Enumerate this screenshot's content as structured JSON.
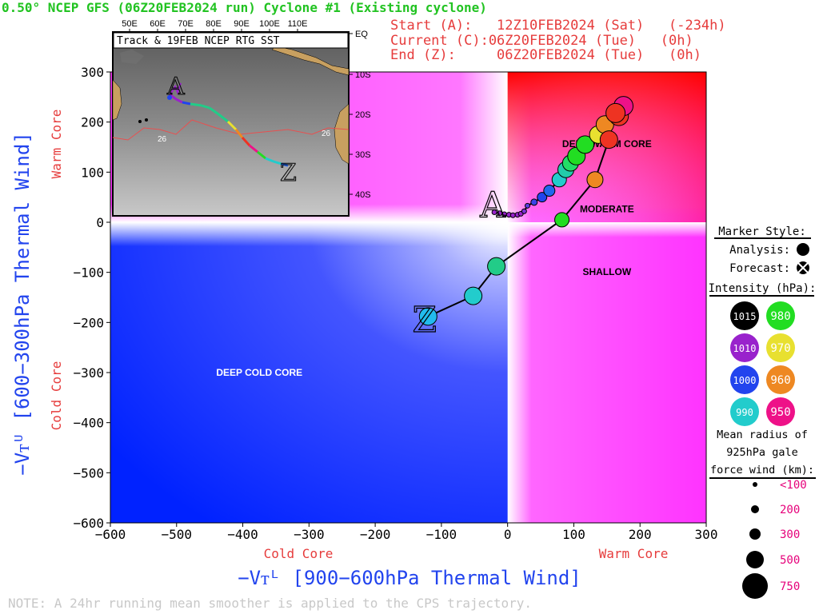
{
  "header": {
    "title": "0.50° NCEP GFS (06Z20FEB2024 run) Cyclone #1 (Existing cyclone)",
    "start_line": "Start (A):   12Z10FEB2024 (Sat)   (-234h)",
    "current_line": "Current (C):06Z20FEB2024 (Tue)   (0h)",
    "end_line": "End (Z):     06Z20FEB2024 (Tue)   (0h)"
  },
  "inset": {
    "title": "Track & 19FEB NCEP RTG SST",
    "lon_labels": [
      "50E",
      "60E",
      "70E",
      "80E",
      "90E",
      "100E",
      "110E"
    ],
    "lat_labels": [
      "EQ",
      "10S",
      "20S",
      "30S",
      "40S"
    ],
    "isotherm_label": "26",
    "start_marker": "A",
    "end_marker": "Z"
  },
  "regions": {
    "deep_warm": "DEEP WARM CORE",
    "moderate": "MODERATE",
    "shallow": "SHALLOW",
    "deep_cold": "DEEP COLD CORE"
  },
  "axes": {
    "ylabel": "−Vᴛᵁ [600−300hPa Thermal Wind]",
    "xlabel": "−Vᴛᴸ [900−600hPa Thermal Wind]",
    "y_warm": "Warm Core",
    "y_cold": "Cold Core",
    "x_cold": "Cold Core",
    "x_warm": "Warm Core"
  },
  "legend": {
    "marker_style_title": "Marker Style:",
    "analysis_label": "Analysis:",
    "forecast_label": "Forecast:",
    "intensity_title": "Intensity (hPa):",
    "intensity_items": [
      {
        "value": "1015",
        "color": "#000000"
      },
      {
        "value": "980",
        "color": "#22dd22"
      },
      {
        "value": "1010",
        "color": "#9922cc"
      },
      {
        "value": "970",
        "color": "#e8e030"
      },
      {
        "value": "1000",
        "color": "#2244ee"
      },
      {
        "value": "960",
        "color": "#ee8822"
      },
      {
        "value": "990",
        "color": "#22cccc"
      },
      {
        "value": "950",
        "color": "#ee1188"
      }
    ],
    "radius_title_1": "Mean radius of",
    "radius_title_2": "925hPa gale",
    "radius_title_3": "force wind (km):",
    "radius_items": [
      "<100",
      "200",
      "300",
      "500",
      "750"
    ]
  },
  "note": "NOTE:  A 24hr running mean smoother is applied to the CPS trajectory.",
  "chart_data": {
    "type": "scatter",
    "title": "0.50° NCEP GFS (06Z20FEB2024 run) Cyclone #1 (Existing cyclone)",
    "xlabel": "−Vᴛᴸ [900−600hPa Thermal Wind]",
    "ylabel": "−Vᴛᵁ [600−300hPa Thermal Wind]",
    "xlim": [
      -600,
      300
    ],
    "ylim": [
      -600,
      300
    ],
    "xticks": [
      -600,
      -500,
      -400,
      -300,
      -200,
      -100,
      0,
      100,
      200,
      300
    ],
    "yticks": [
      300,
      200,
      100,
      0,
      -100,
      -200,
      -300,
      -400,
      -500,
      -600
    ],
    "grid": false,
    "trajectory": [
      {
        "x": -20,
        "y": 20,
        "r": 3,
        "color": "#9922cc"
      },
      {
        "x": -12,
        "y": 18,
        "r": 3,
        "color": "#9922cc"
      },
      {
        "x": -5,
        "y": 16,
        "r": 3,
        "color": "#9922cc"
      },
      {
        "x": 2,
        "y": 15,
        "r": 3,
        "color": "#9922cc"
      },
      {
        "x": 8,
        "y": 14,
        "r": 3,
        "color": "#9922cc"
      },
      {
        "x": 15,
        "y": 15,
        "r": 3,
        "color": "#9922cc"
      },
      {
        "x": 20,
        "y": 17,
        "r": 3,
        "color": "#9922cc"
      },
      {
        "x": 25,
        "y": 22,
        "r": 3,
        "color": "#7a33d6"
      },
      {
        "x": 30,
        "y": 33,
        "r": 3,
        "color": "#5a3ee0"
      },
      {
        "x": 40,
        "y": 40,
        "r": 4,
        "color": "#3a44e6"
      },
      {
        "x": 52,
        "y": 50,
        "r": 6,
        "color": "#2244ee"
      },
      {
        "x": 63,
        "y": 63,
        "r": 7,
        "color": "#2266ee"
      },
      {
        "x": 78,
        "y": 85,
        "r": 9,
        "color": "#22cccc"
      },
      {
        "x": 88,
        "y": 105,
        "r": 10,
        "color": "#22ccaa"
      },
      {
        "x": 95,
        "y": 118,
        "r": 10,
        "color": "#22dd66"
      },
      {
        "x": 104,
        "y": 132,
        "r": 11,
        "color": "#22dd22"
      },
      {
        "x": 117,
        "y": 155,
        "r": 11,
        "color": "#22dd22"
      },
      {
        "x": 137,
        "y": 175,
        "r": 11,
        "color": "#e8e030"
      },
      {
        "x": 147,
        "y": 195,
        "r": 11,
        "color": "#ee8822"
      },
      {
        "x": 168,
        "y": 212,
        "r": 12,
        "color": "#ee3322"
      },
      {
        "x": 175,
        "y": 232,
        "r": 12,
        "color": "#ee1188"
      },
      {
        "x": 163,
        "y": 218,
        "r": 12,
        "color": "#ee3322"
      },
      {
        "x": 153,
        "y": 165,
        "r": 11,
        "color": "#ee3322"
      },
      {
        "x": 132,
        "y": 85,
        "r": 10,
        "color": "#ee8822"
      },
      {
        "x": 82,
        "y": 5,
        "r": 9,
        "color": "#22dd22"
      },
      {
        "x": -17,
        "y": -88,
        "r": 11,
        "color": "#22cc88"
      },
      {
        "x": -52,
        "y": -147,
        "r": 11,
        "color": "#22cccc"
      },
      {
        "x": -120,
        "y": -188,
        "r": 11,
        "color": "#22bbee"
      }
    ],
    "start_label": {
      "text": "A",
      "x": -20,
      "y": 20
    },
    "end_label": {
      "text": "Z",
      "x": -123,
      "y": -190
    }
  }
}
